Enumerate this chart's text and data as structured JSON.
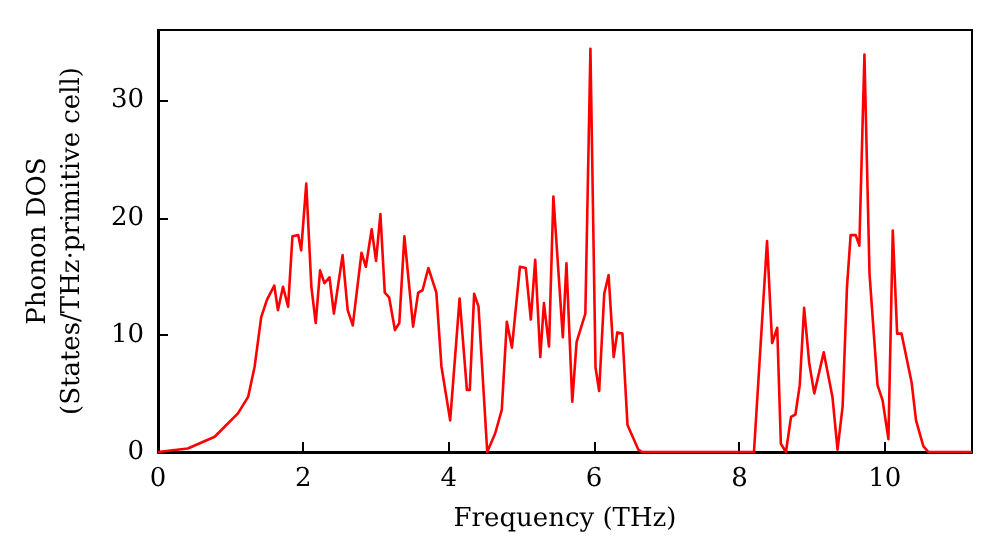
{
  "chart_data": {
    "type": "line",
    "xlabel": "Frequency (THz)",
    "ylabel": "Phonon DOS\n(States/THz·primitive cell)",
    "xlim": [
      0,
      11.2
    ],
    "xticks": [
      0,
      2,
      4,
      6,
      8,
      10
    ],
    "ylim": [
      0,
      36
    ],
    "yticks": [
      0,
      10,
      20,
      30
    ],
    "grid": false,
    "marker": "none",
    "line_style": "solid",
    "series": [
      {
        "color": "#ff0000",
        "x": [
          0,
          0.41,
          0.78,
          1.1,
          1.24,
          1.33,
          1.42,
          1.5,
          1.6,
          1.65,
          1.72,
          1.79,
          1.85,
          1.93,
          1.97,
          2.04,
          2.11,
          2.17,
          2.23,
          2.29,
          2.36,
          2.42,
          2.54,
          2.61,
          2.68,
          2.8,
          2.86,
          2.94,
          3.0,
          3.06,
          3.12,
          3.18,
          3.26,
          3.32,
          3.39,
          3.51,
          3.58,
          3.64,
          3.72,
          3.83,
          3.9,
          4.02,
          4.15,
          4.25,
          4.29,
          4.35,
          4.41,
          4.53,
          4.64,
          4.73,
          4.8,
          4.87,
          4.98,
          5.06,
          5.13,
          5.19,
          5.26,
          5.31,
          5.38,
          5.44,
          5.57,
          5.62,
          5.7,
          5.76,
          5.88,
          5.95,
          6.02,
          6.07,
          6.14,
          6.2,
          6.27,
          6.32,
          6.39,
          6.46,
          6.61,
          6.66,
          8.16,
          8.2,
          8.38,
          8.45,
          8.52,
          8.57,
          8.64,
          8.71,
          8.77,
          8.83,
          8.89,
          8.96,
          9.03,
          9.16,
          9.28,
          9.35,
          9.42,
          9.48,
          9.53,
          9.6,
          9.65,
          9.72,
          9.79,
          9.9,
          9.97,
          10.05,
          10.11,
          10.17,
          10.23,
          10.37,
          10.43,
          10.53,
          10.6,
          11.2
        ],
        "values": [
          0,
          0.3,
          1.3,
          3.3,
          4.7,
          7.3,
          11.5,
          13,
          14.2,
          12.1,
          14.1,
          12.4,
          18.4,
          18.5,
          17.2,
          22.9,
          14.1,
          11,
          15.5,
          14.4,
          14.9,
          11.8,
          16.8,
          12.1,
          10.8,
          17,
          15.8,
          19,
          16.3,
          20.3,
          13.6,
          13.2,
          10.4,
          11,
          18.4,
          10.7,
          13.6,
          13.8,
          15.7,
          13.6,
          7.3,
          2.7,
          13.1,
          5.3,
          5.3,
          13.5,
          12.4,
          0,
          1.6,
          3.6,
          11.1,
          8.9,
          15.8,
          15.7,
          11.3,
          16.4,
          8.1,
          12.7,
          9,
          21.8,
          9.8,
          16.1,
          4.3,
          9.4,
          11.8,
          34.4,
          7.2,
          5.2,
          13.5,
          15.1,
          8.1,
          10.2,
          10.1,
          2.3,
          0.2,
          0,
          0,
          0,
          18,
          9.3,
          10.6,
          0.7,
          0,
          3,
          3.2,
          5.7,
          12.3,
          7.6,
          5,
          8.5,
          4.7,
          0.2,
          3.9,
          14.1,
          18.5,
          18.5,
          17.6,
          33.9,
          15.2,
          5.7,
          4.4,
          1.1,
          18.9,
          10.1,
          10.1,
          5.9,
          2.7,
          0.5,
          0,
          0
        ]
      }
    ]
  }
}
